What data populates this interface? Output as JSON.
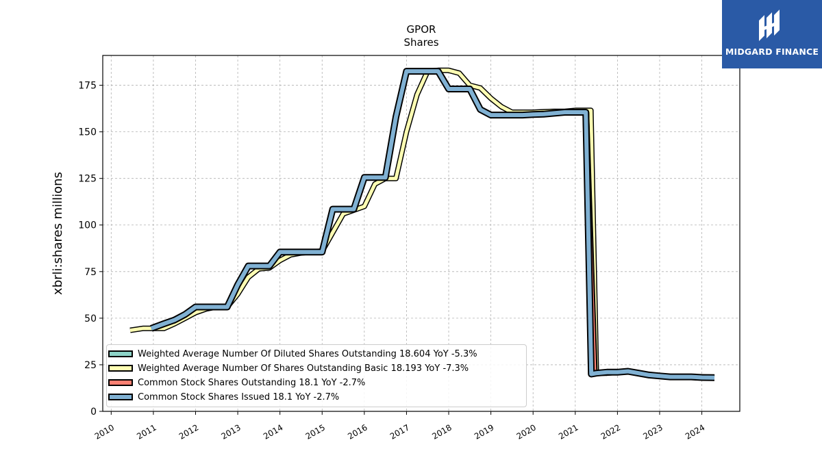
{
  "chart_data": {
    "type": "line",
    "title": "GPOR",
    "subtitle": "Shares",
    "ylabel": "xbrli:shares millions",
    "xlabel": "",
    "ylim": [
      0,
      191
    ],
    "xlim": [
      2009.8,
      2024.9
    ],
    "x_tick_labels": [
      "2010",
      "2011",
      "2012",
      "2013",
      "2014",
      "2015",
      "2016",
      "2017",
      "2018",
      "2019",
      "2020",
      "2021",
      "2022",
      "2023",
      "2024"
    ],
    "y_tick_labels": [
      "0",
      "25",
      "50",
      "75",
      "100",
      "125",
      "150",
      "175"
    ],
    "y_ticks": [
      0,
      25,
      50,
      75,
      100,
      125,
      150,
      175
    ],
    "grid": true,
    "legend_position": "lower-left",
    "series": [
      {
        "name": "Weighted Average Number Of Diluted Shares Outstanding",
        "legend_label": "Weighted Average Number Of Diluted Shares Outstanding  18.604 YoY -5.3%",
        "color": "#8dd3c7",
        "x": [],
        "y": []
      },
      {
        "name": "Weighted Average Number Of Shares Outstanding Basic",
        "legend_label": "Weighted Average Number Of Shares Outstanding Basic  18.193 YoY -7.3%",
        "color": "#ffffb3",
        "x": [
          2010.45,
          2010.75,
          2011.0,
          2011.25,
          2011.5,
          2011.75,
          2012.0,
          2012.25,
          2012.5,
          2012.75,
          2013.0,
          2013.25,
          2013.5,
          2013.75,
          2014.0,
          2014.25,
          2014.5,
          2014.75,
          2015.0,
          2015.25,
          2015.5,
          2015.75,
          2016.0,
          2016.25,
          2016.5,
          2016.75,
          2017.0,
          2017.25,
          2017.5,
          2017.75,
          2018.0,
          2018.25,
          2018.5,
          2018.75,
          2019.0,
          2019.25,
          2019.5,
          2019.75,
          2020.0,
          2020.25,
          2020.5,
          2020.75,
          2021.0,
          2021.25,
          2021.37,
          2021.5,
          2021.75,
          2022.0,
          2022.25,
          2022.5,
          2022.75,
          2023.0,
          2023.25,
          2023.5,
          2023.75,
          2024.0,
          2024.3
        ],
        "y": [
          43.5,
          44.5,
          44.5,
          44.5,
          47,
          50,
          53,
          55,
          56,
          56,
          63,
          72,
          76.5,
          77,
          81,
          84,
          85,
          85.5,
          86,
          96,
          106,
          108,
          110,
          122,
          125,
          125,
          150,
          170,
          182.5,
          183,
          183,
          181.5,
          175,
          173.5,
          168,
          163.5,
          160.5,
          160.5,
          160.5,
          160.8,
          161,
          161,
          161.5,
          161.5,
          161.5,
          20.5,
          20.5,
          21,
          21.5,
          20.5,
          19.5,
          19,
          18.5,
          18.5,
          18.5,
          18.5,
          18.2
        ]
      },
      {
        "name": "Common Stock Shares Outstanding",
        "legend_label": "Common Stock Shares Outstanding  18.1 YoY -2.7%",
        "color": "#fb8072",
        "x": [
          2021.25,
          2021.45
        ],
        "y": [
          160.5,
          21
        ]
      },
      {
        "name": "Common Stock Shares Issued",
        "legend_label": "Common Stock Shares Issued  18.1 YoY -2.7%",
        "color": "#80b1d3",
        "x": [
          2010.95,
          2011.25,
          2011.5,
          2011.75,
          2012.0,
          2012.25,
          2012.5,
          2012.75,
          2013.0,
          2013.25,
          2013.5,
          2013.75,
          2014.0,
          2014.25,
          2014.5,
          2014.75,
          2015.0,
          2015.25,
          2015.5,
          2015.75,
          2016.0,
          2016.25,
          2016.5,
          2016.75,
          2017.0,
          2017.2,
          2017.5,
          2017.75,
          2018.0,
          2018.2,
          2018.5,
          2018.75,
          2019.0,
          2019.25,
          2019.5,
          2019.75,
          2020.0,
          2020.25,
          2020.5,
          2020.75,
          2021.0,
          2021.25,
          2021.38,
          2021.5,
          2021.75,
          2022.0,
          2022.25,
          2022.5,
          2022.75,
          2023.0,
          2023.25,
          2023.5,
          2023.75,
          2024.0,
          2024.3
        ],
        "y": [
          44.5,
          47,
          49,
          52,
          56,
          56,
          56,
          56,
          68,
          78,
          78,
          78,
          85.5,
          85.5,
          85.5,
          85.5,
          85.5,
          108.5,
          108.5,
          108.5,
          125.5,
          125.5,
          125.5,
          158,
          182.5,
          182.5,
          182.5,
          182.5,
          173,
          173,
          173,
          162,
          159,
          159,
          159,
          159,
          159.3,
          159.5,
          160,
          160.5,
          160.5,
          160.5,
          20,
          20.5,
          21,
          21,
          21.5,
          20.5,
          19.5,
          19,
          18.5,
          18.5,
          18.5,
          18.2,
          18.1
        ]
      }
    ]
  },
  "logo": {
    "text": "MIDGARD FINANCE",
    "color": "#2a5aa6",
    "icon": "midgard-logo-icon"
  }
}
